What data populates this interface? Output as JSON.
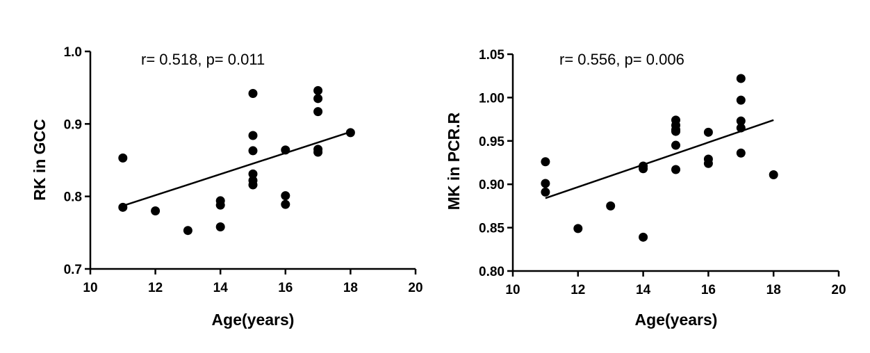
{
  "chart_data": [
    {
      "type": "scatter",
      "title": "",
      "annotation": "r= 0.518, p= 0.011",
      "xlabel": "Age(years)",
      "ylabel": "RK in GCC",
      "xlim": [
        10,
        20
      ],
      "ylim": [
        0.7,
        1.0
      ],
      "xticks": [
        10,
        12,
        14,
        16,
        18,
        20
      ],
      "xtick_labels": [
        "10",
        "12",
        "14",
        "16",
        "18",
        "20"
      ],
      "yticks": [
        0.7,
        0.8,
        0.9,
        1.0
      ],
      "ytick_labels": [
        "0.7",
        "0.8",
        "0.9",
        "1.0"
      ],
      "points": [
        {
          "x": 11,
          "y": 0.853
        },
        {
          "x": 11,
          "y": 0.785
        },
        {
          "x": 12,
          "y": 0.78
        },
        {
          "x": 13,
          "y": 0.753
        },
        {
          "x": 14,
          "y": 0.794
        },
        {
          "x": 14,
          "y": 0.788
        },
        {
          "x": 14,
          "y": 0.758
        },
        {
          "x": 15,
          "y": 0.942
        },
        {
          "x": 15,
          "y": 0.884
        },
        {
          "x": 15,
          "y": 0.863
        },
        {
          "x": 15,
          "y": 0.831
        },
        {
          "x": 15,
          "y": 0.822
        },
        {
          "x": 15,
          "y": 0.816
        },
        {
          "x": 16,
          "y": 0.864
        },
        {
          "x": 16,
          "y": 0.801
        },
        {
          "x": 16,
          "y": 0.789
        },
        {
          "x": 17,
          "y": 0.946
        },
        {
          "x": 17,
          "y": 0.935
        },
        {
          "x": 17,
          "y": 0.917
        },
        {
          "x": 17,
          "y": 0.865
        },
        {
          "x": 17,
          "y": 0.861
        },
        {
          "x": 18,
          "y": 0.888
        }
      ],
      "fit_line": {
        "x": [
          11,
          18
        ],
        "y": [
          0.787,
          0.889
        ]
      },
      "grid": false,
      "legend": "none"
    },
    {
      "type": "scatter",
      "title": "",
      "annotation": "r= 0.556, p= 0.006",
      "xlabel": "Age(years)",
      "ylabel": "MK in PCR.R",
      "xlim": [
        10,
        20
      ],
      "ylim": [
        0.8,
        1.05
      ],
      "xticks": [
        10,
        12,
        14,
        16,
        18,
        20
      ],
      "xtick_labels": [
        "10",
        "12",
        "14",
        "16",
        "18",
        "20"
      ],
      "yticks": [
        0.8,
        0.85,
        0.9,
        0.95,
        1.0,
        1.05
      ],
      "ytick_labels": [
        "0.80",
        "0.85",
        "0.90",
        "0.95",
        "1.00",
        "1.05"
      ],
      "points": [
        {
          "x": 11,
          "y": 0.926
        },
        {
          "x": 11,
          "y": 0.901
        },
        {
          "x": 11,
          "y": 0.891
        },
        {
          "x": 12,
          "y": 0.849
        },
        {
          "x": 13,
          "y": 0.875
        },
        {
          "x": 14,
          "y": 0.921
        },
        {
          "x": 14,
          "y": 0.918
        },
        {
          "x": 14,
          "y": 0.839
        },
        {
          "x": 15,
          "y": 0.974
        },
        {
          "x": 15,
          "y": 0.968
        },
        {
          "x": 15,
          "y": 0.963
        },
        {
          "x": 15,
          "y": 0.961
        },
        {
          "x": 15,
          "y": 0.945
        },
        {
          "x": 15,
          "y": 0.917
        },
        {
          "x": 16,
          "y": 0.96
        },
        {
          "x": 16,
          "y": 0.929
        },
        {
          "x": 16,
          "y": 0.924
        },
        {
          "x": 17,
          "y": 1.022
        },
        {
          "x": 17,
          "y": 0.997
        },
        {
          "x": 17,
          "y": 0.973
        },
        {
          "x": 17,
          "y": 0.965
        },
        {
          "x": 17,
          "y": 0.936
        },
        {
          "x": 18,
          "y": 0.911
        }
      ],
      "fit_line": {
        "x": [
          11,
          18
        ],
        "y": [
          0.884,
          0.974
        ]
      },
      "grid": false,
      "legend": "none"
    }
  ]
}
